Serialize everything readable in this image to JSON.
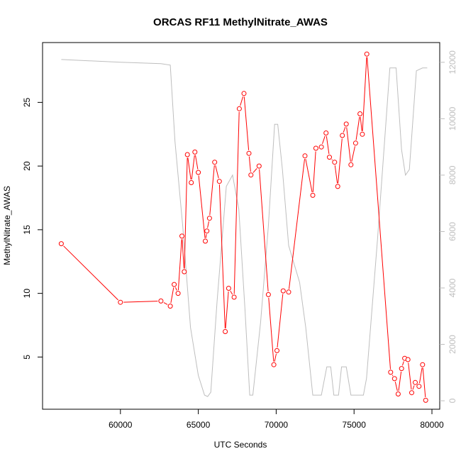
{
  "chart_data": {
    "type": "line",
    "title": "ORCAS RF11 MethylNitrate_AWAS",
    "xlabel": "UTC Seconds",
    "ylabel": "MethylNitrate_AWAS",
    "xlim": [
      55000,
      80500
    ],
    "ylim": [
      0.9,
      29.7
    ],
    "y2lim": [
      -300,
      12700
    ],
    "x_ticks": [
      60000,
      65000,
      70000,
      75000,
      80000
    ],
    "x_tick_labels": [
      "60000",
      "65000",
      "70000",
      "75000",
      "80000"
    ],
    "y_ticks": [
      5,
      10,
      15,
      20,
      25
    ],
    "y_tick_labels": [
      "5",
      "10",
      "15",
      "20",
      "25"
    ],
    "y2_ticks": [
      0,
      2000,
      4000,
      6000,
      8000,
      10000,
      12000
    ],
    "y2_tick_labels": [
      "0",
      "2000",
      "4000",
      "6000",
      "8000",
      "10000",
      "12000"
    ],
    "grid": false,
    "colors": {
      "series": "#ff0000",
      "secondary": "#bebebe",
      "frame": "#000000"
    },
    "series": [
      {
        "axis": "left",
        "style": "line+points",
        "color": "#ff0000",
        "x": [
          56200,
          60000,
          62600,
          63200,
          63450,
          63700,
          63950,
          64100,
          64300,
          64550,
          64780,
          65000,
          65450,
          65550,
          65720,
          66050,
          66350,
          66730,
          66950,
          67300,
          67630,
          67930,
          68250,
          68380,
          68900,
          69500,
          69850,
          70050,
          70450,
          70800,
          71850,
          72350,
          72550,
          72900,
          73200,
          73420,
          73750,
          73950,
          74250,
          74500,
          74800,
          75100,
          75380,
          75530,
          75820,
          77350,
          77600,
          77830,
          78050,
          78250,
          78460,
          78700,
          78930,
          79170,
          79400,
          79600
        ],
        "y": [
          13.9,
          9.3,
          9.4,
          9.0,
          10.7,
          10.0,
          14.5,
          11.7,
          20.9,
          18.7,
          21.1,
          19.5,
          14.1,
          14.9,
          15.9,
          20.3,
          18.8,
          7.0,
          10.4,
          9.7,
          24.5,
          25.7,
          21.0,
          19.3,
          20.0,
          9.9,
          4.4,
          5.5,
          10.2,
          10.1,
          20.8,
          17.7,
          21.4,
          21.5,
          22.6,
          20.7,
          20.3,
          18.4,
          22.4,
          23.3,
          20.1,
          21.8,
          24.1,
          22.5,
          28.8,
          3.8,
          3.3,
          2.1,
          4.1,
          4.9,
          4.8,
          2.2,
          3.0,
          2.7,
          4.4,
          1.6
        ]
      },
      {
        "axis": "right",
        "style": "line",
        "color": "#bebebe",
        "x": [
          56200,
          60000,
          62600,
          63200,
          63500,
          64000,
          64500,
          65000,
          65400,
          65600,
          65800,
          66200,
          66800,
          67200,
          67600,
          68000,
          68300,
          68500,
          69000,
          69500,
          69900,
          70100,
          70400,
          70800,
          71500,
          71900,
          72350,
          72900,
          73250,
          73500,
          73700,
          74000,
          74200,
          74500,
          74800,
          75100,
          75600,
          75800,
          76500,
          77300,
          77500,
          77700,
          78050,
          78300,
          78550,
          79000,
          79400,
          79700
        ],
        "y": [
          12100,
          12000,
          11950,
          11900,
          9200,
          6200,
          2600,
          900,
          200,
          150,
          300,
          3500,
          7600,
          8000,
          6800,
          3200,
          200,
          200,
          2800,
          6200,
          9800,
          9800,
          8200,
          5500,
          4200,
          2600,
          200,
          200,
          1200,
          1200,
          200,
          200,
          1200,
          1200,
          200,
          200,
          200,
          800,
          5700,
          11800,
          11800,
          11800,
          8900,
          8000,
          8200,
          11700,
          11800,
          11800
        ]
      }
    ]
  }
}
